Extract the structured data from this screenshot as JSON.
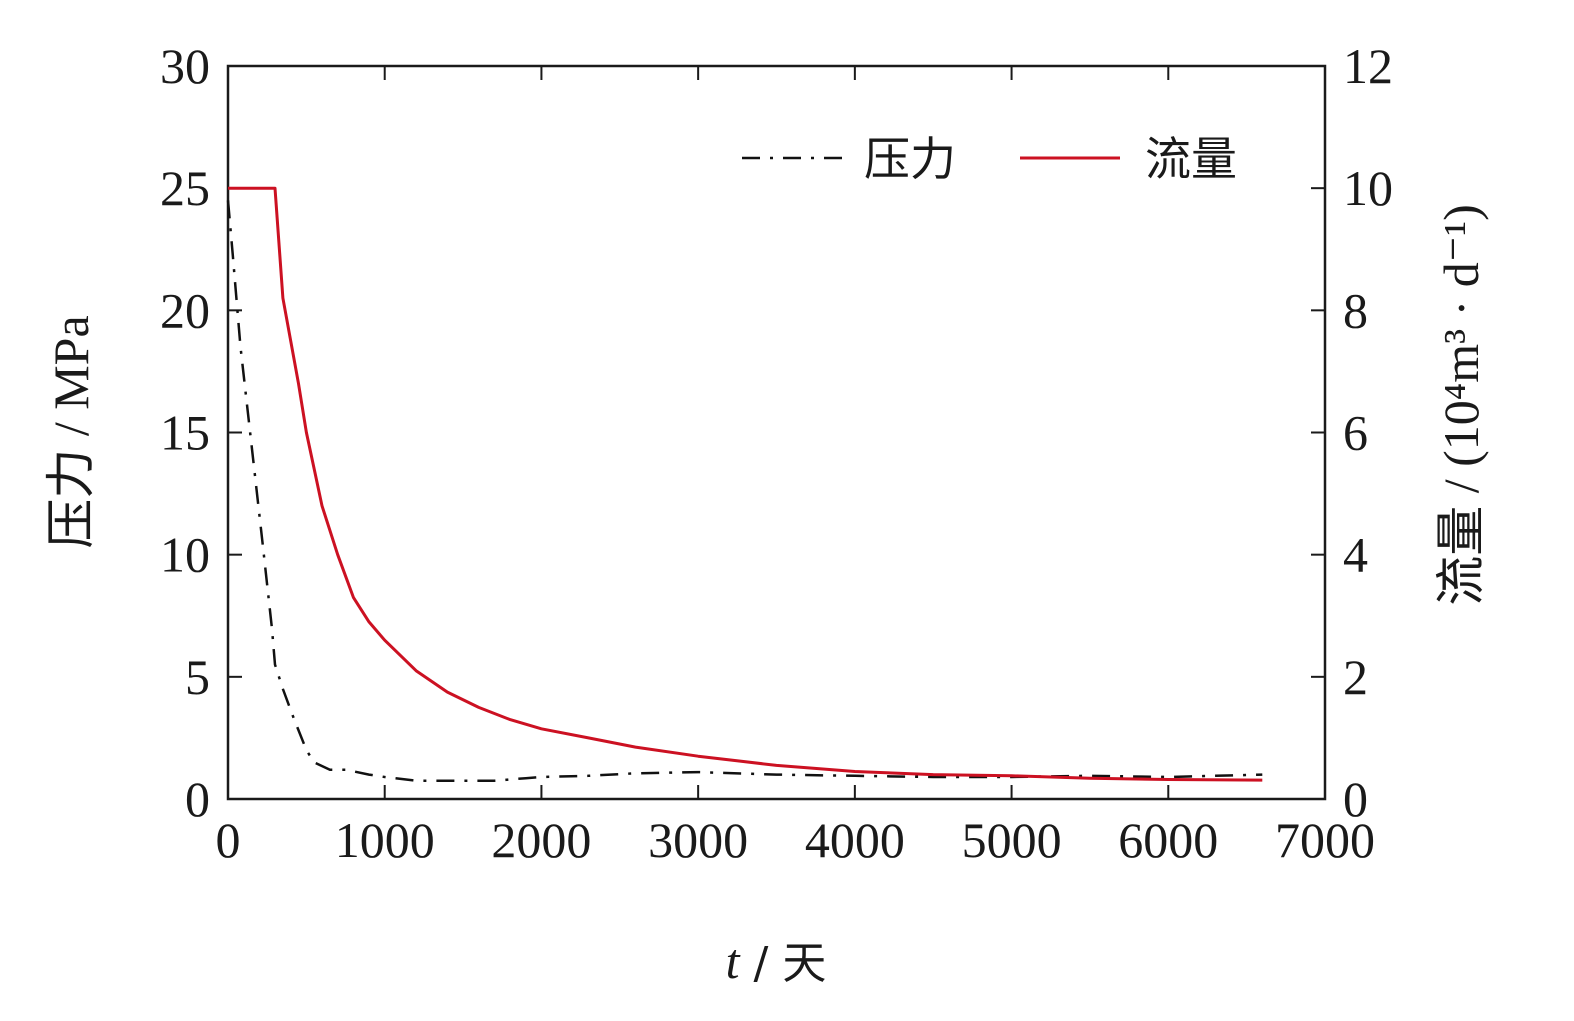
{
  "chart_data": {
    "type": "line",
    "title": "",
    "xlabel": "t / 天",
    "xlabel_var": "t",
    "xlabel_unit": " / 天",
    "ylabel_left": "压力 / MPa",
    "ylabel_right": "流量 / (10⁴m³ · d⁻¹)",
    "xlim": [
      0,
      7000
    ],
    "ylim_left": [
      0,
      30
    ],
    "ylim_right": [
      0,
      12
    ],
    "x_ticks": [
      0,
      1000,
      2000,
      3000,
      4000,
      5000,
      6000,
      7000
    ],
    "y_left_ticks": [
      0,
      5,
      10,
      15,
      20,
      25,
      30
    ],
    "y_right_ticks": [
      0,
      2,
      4,
      6,
      8,
      10,
      12
    ],
    "grid": false,
    "legend_position": "top-right",
    "series": [
      {
        "name": "压力",
        "axis": "left",
        "style": "dash-dot",
        "color": "#111111",
        "x": [
          0,
          30,
          80,
          150,
          220,
          280,
          300,
          350,
          420,
          500,
          550,
          650,
          750,
          900,
          1000,
          1200,
          1400,
          1700,
          1900,
          2000,
          2300,
          2600,
          3000,
          3500,
          4000,
          4500,
          5000,
          5500,
          6000,
          6600
        ],
        "y": [
          24.5,
          22.3,
          18.5,
          14.5,
          10.5,
          7.0,
          5.5,
          4.5,
          3.3,
          2.0,
          1.5,
          1.2,
          1.2,
          1.0,
          0.9,
          0.75,
          0.75,
          0.75,
          0.85,
          0.9,
          0.95,
          1.05,
          1.1,
          1.0,
          0.95,
          0.9,
          0.9,
          0.95,
          0.9,
          1.0
        ]
      },
      {
        "name": "流量",
        "axis": "right",
        "style": "solid",
        "color": "#cc1122",
        "x": [
          0,
          300,
          350,
          400,
          450,
          500,
          550,
          600,
          700,
          800,
          900,
          1000,
          1200,
          1400,
          1600,
          1800,
          2000,
          2300,
          2600,
          3000,
          3500,
          4000,
          4500,
          5000,
          5500,
          6000,
          6600
        ],
        "y": [
          10.0,
          10.0,
          8.2,
          7.5,
          6.8,
          6.0,
          5.4,
          4.8,
          4.0,
          3.3,
          2.9,
          2.6,
          2.1,
          1.75,
          1.5,
          1.3,
          1.15,
          1.0,
          0.85,
          0.7,
          0.55,
          0.45,
          0.4,
          0.38,
          0.34,
          0.32,
          0.31
        ]
      }
    ]
  }
}
